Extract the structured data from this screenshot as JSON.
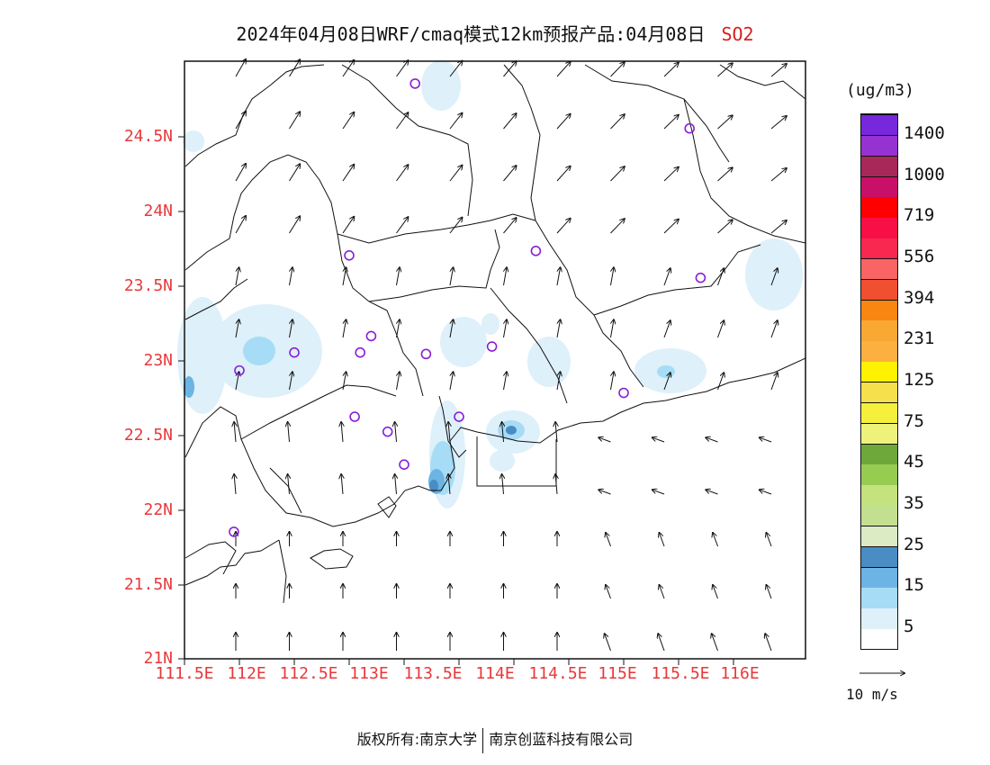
{
  "title": {
    "text": "2024年04月08日WRF/cmaq模式12km预报产品:04月08日",
    "pollutant": "SO2"
  },
  "axes": {
    "lat_labels": [
      "24.5N",
      "24N",
      "23.5N",
      "23N",
      "22.5N",
      "22N",
      "21.5N",
      "21N"
    ],
    "lon_labels": [
      "111.5E",
      "112E",
      "112.5E",
      "113E",
      "113.5E",
      "114E",
      "114.5E",
      "115E",
      "115.5E",
      "116E"
    ],
    "label_color": "#e8383a"
  },
  "colorbar": {
    "unit": "(ug/m3)",
    "colors": [
      "#ffffff",
      "#def0fa",
      "#a6dcf5",
      "#6cb4e4",
      "#4a8cc4",
      "#dcebc4",
      "#c2e090",
      "#c4e27e",
      "#96cc50",
      "#6ea83a",
      "#eef27a",
      "#f4f03c",
      "#f6e04c",
      "#fff200",
      "#fbb040",
      "#f9a834",
      "#f88610",
      "#f05030",
      "#fa6464",
      "#f82850",
      "#f80f45",
      "#ff0000",
      "#c81068",
      "#a8285a",
      "#9632d2",
      "#7828dc"
    ],
    "labels": [
      "5",
      "15",
      "25",
      "35",
      "45",
      "75",
      "125",
      "231",
      "394",
      "556",
      "719",
      "1000",
      "1400"
    ]
  },
  "vector_legend": "10 m/s",
  "copyright": {
    "left": "版权所有:南京大学",
    "right": "南京创蓝科技有限公司"
  },
  "stations": [
    {
      "lon": 113.6,
      "lat": 24.85
    },
    {
      "lon": 116.1,
      "lat": 24.55
    },
    {
      "lon": 113.0,
      "lat": 23.7
    },
    {
      "lon": 114.7,
      "lat": 23.73
    },
    {
      "lon": 116.2,
      "lat": 23.55
    },
    {
      "lon": 112.5,
      "lat": 23.05
    },
    {
      "lon": 112.0,
      "lat": 22.93
    },
    {
      "lon": 113.1,
      "lat": 23.05
    },
    {
      "lon": 113.2,
      "lat": 23.16
    },
    {
      "lon": 113.7,
      "lat": 23.04
    },
    {
      "lon": 114.3,
      "lat": 23.09
    },
    {
      "lon": 115.5,
      "lat": 22.78
    },
    {
      "lon": 113.05,
      "lat": 22.62
    },
    {
      "lon": 113.35,
      "lat": 22.52
    },
    {
      "lon": 114.0,
      "lat": 22.62
    },
    {
      "lon": 113.5,
      "lat": 22.3
    },
    {
      "lon": 111.95,
      "lat": 21.85
    }
  ]
}
